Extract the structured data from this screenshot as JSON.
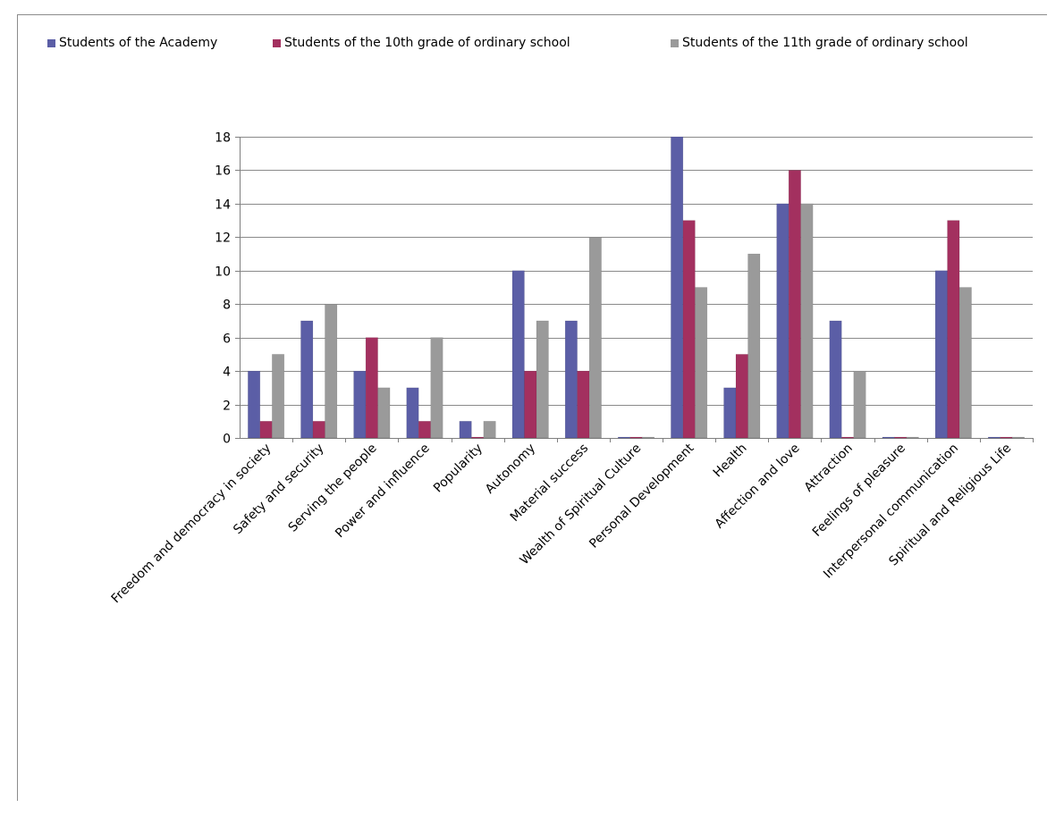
{
  "chart_data": {
    "type": "bar",
    "title": "",
    "xlabel": "",
    "ylabel": "",
    "ylim": [
      0,
      18
    ],
    "yticks": [
      0,
      2,
      4,
      6,
      8,
      10,
      12,
      14,
      16,
      18
    ],
    "grid": true,
    "legend_position": "top",
    "categories": [
      "Freedom and democracy in society",
      "Safety and security",
      "Serving the people",
      "Power and influence",
      "Popularity",
      "Autonomy",
      "Material success",
      "Wealth of Spiritual Culture",
      "Personal Development",
      "Health",
      "Affection and love",
      "Attraction",
      "Feelings of pleasure",
      "Interpersonal communication",
      "Spiritual and Religious Life"
    ],
    "series": [
      {
        "name": "Students of the Academy",
        "color": "#5b5ea6",
        "values": [
          4,
          7,
          4,
          3,
          1,
          10,
          7,
          0,
          18,
          3,
          14,
          7,
          0,
          10,
          0
        ]
      },
      {
        "name": "Students of the 10th grade of ordinary school",
        "color": "#a3305f",
        "values": [
          1,
          1,
          6,
          1,
          0,
          4,
          4,
          0,
          13,
          5,
          16,
          0,
          0,
          13,
          0
        ]
      },
      {
        "name": "Students of the 11th grade of ordinary school",
        "color": "#9a9a9a",
        "values": [
          5,
          8,
          3,
          6,
          1,
          7,
          12,
          0,
          9,
          11,
          14,
          4,
          0,
          9,
          0
        ]
      }
    ]
  }
}
